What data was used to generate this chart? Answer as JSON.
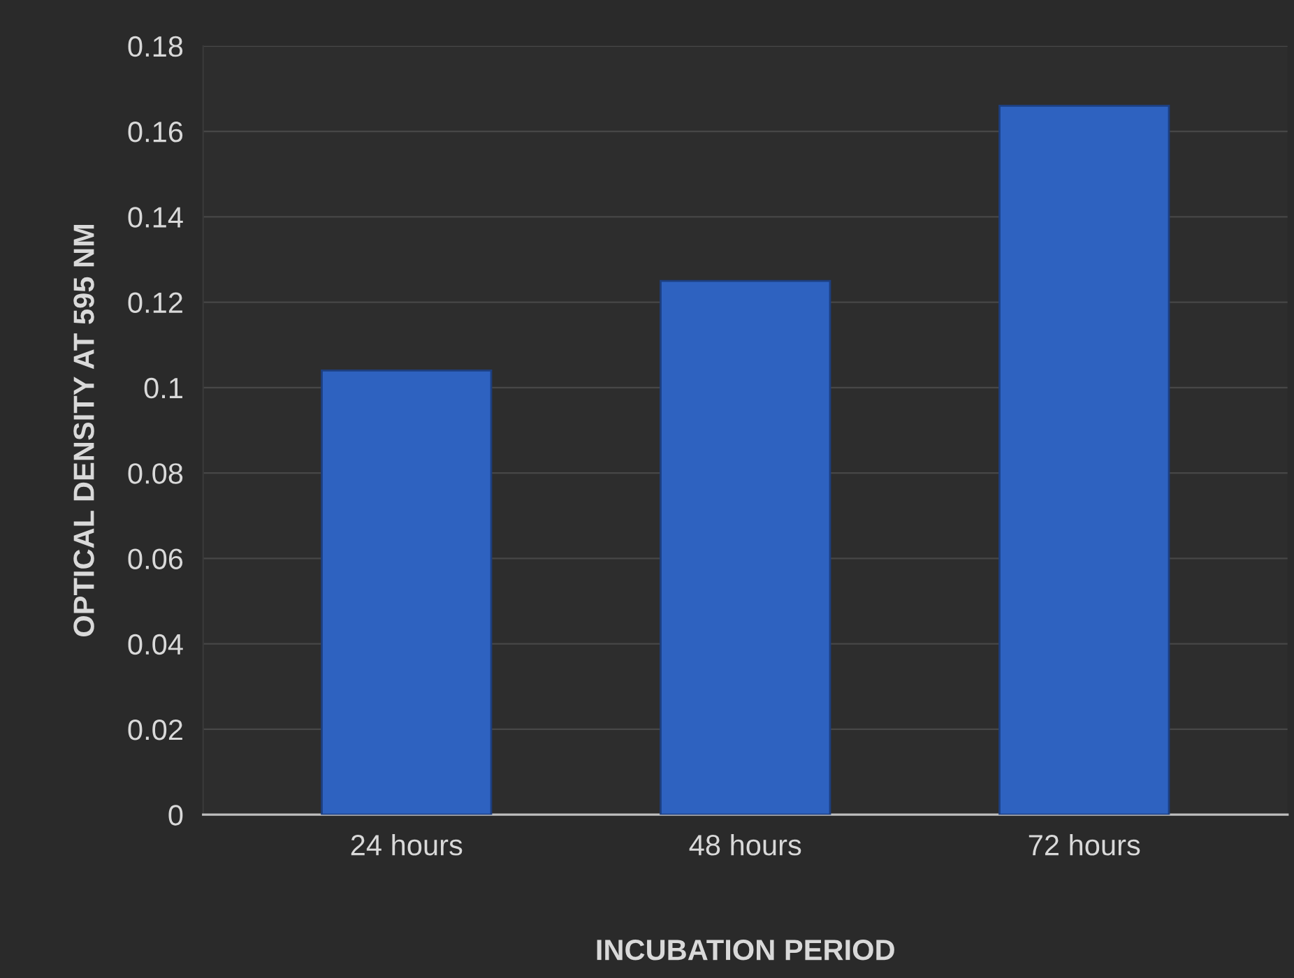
{
  "chart_data": {
    "type": "bar",
    "xlabel": "INCUBATION PERIOD",
    "ylabel": "OPTICAL DENSITY AT 595 NM",
    "categories": [
      "24 hours",
      "48 hours",
      "72 hours"
    ],
    "values": [
      0.104,
      0.125,
      0.166
    ],
    "color": "#2e62c0",
    "ylim": [
      0,
      0.18
    ],
    "yticks": [
      0,
      0.02,
      0.04,
      0.06,
      0.08,
      0.1,
      0.12,
      0.14,
      0.16,
      0.18
    ],
    "grid": "y",
    "legend": false
  }
}
